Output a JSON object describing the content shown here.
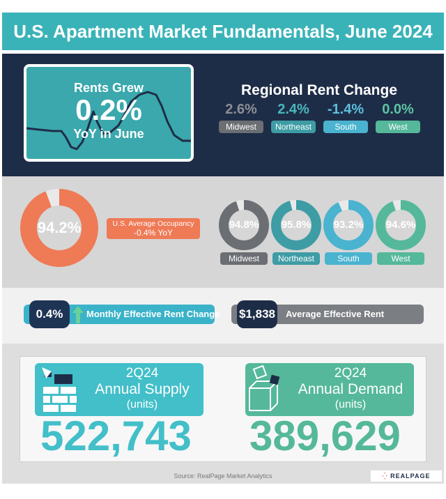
{
  "title": "U.S. Apartment Market Fundamentals, June 2024",
  "rent_growth": {
    "line1": "Rents Grew",
    "value": "0.2%",
    "line3": "YoY in June"
  },
  "regional": {
    "title": "Regional Rent Change",
    "items": [
      {
        "value": "2.6%",
        "label": "Midwest",
        "color": "#6b6e73"
      },
      {
        "value": "2.4%",
        "label": "Northeast",
        "color": "#3e9ca5"
      },
      {
        "value": "-1.4%",
        "label": "South",
        "color": "#4ab3cf"
      },
      {
        "value": "0.0%",
        "label": "West",
        "color": "#55b89a"
      }
    ]
  },
  "occupancy": {
    "us": {
      "value": "94.2%",
      "percent": 94.2,
      "color": "#ef7a56"
    },
    "label_line1": "U.S. Average Occupancy",
    "label_line2": "-0.4% YoY",
    "regions": [
      {
        "value": "94.8%",
        "percent": 94.8,
        "label": "Midwest",
        "color": "#6b6e73"
      },
      {
        "value": "95.8%",
        "percent": 95.8,
        "label": "Northeast",
        "color": "#3e9ca5"
      },
      {
        "value": "93.2%",
        "percent": 93.2,
        "label": "South",
        "color": "#4ab3cf"
      },
      {
        "value": "94.6%",
        "percent": 94.6,
        "label": "West",
        "color": "#55b89a"
      }
    ]
  },
  "effective": {
    "monthly_change_value": "0.4%",
    "monthly_change_label": "Monthly Effective Rent Change",
    "average_rent_value": "$1,838",
    "average_rent_label": "Average Effective Rent"
  },
  "supply": {
    "period": "2Q24",
    "label": "Annual Supply",
    "unit": "(units)",
    "value": "522,743"
  },
  "demand": {
    "period": "2Q24",
    "label": "Annual Demand",
    "unit": "(units)",
    "value": "389,629"
  },
  "source": "Source: RealPage Market Analytics",
  "logo": "REALPAGE"
}
